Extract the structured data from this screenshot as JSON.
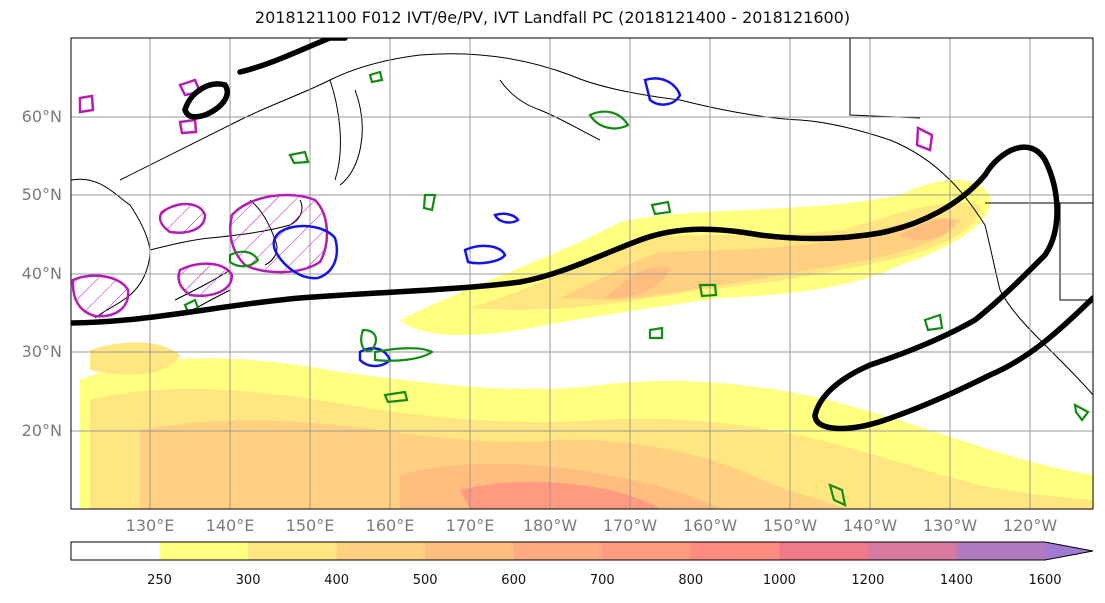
{
  "title": "2018121100 F012 IVT/θe/PV, IVT Landfall PC (2018121400 - 2018121600)",
  "lat_labels": [
    "60°N",
    "50°N",
    "40°N",
    "30°N",
    "20°N"
  ],
  "lon_labels": [
    "130°E",
    "140°E",
    "150°E",
    "160°E",
    "170°E",
    "180°W",
    "170°W",
    "160°W",
    "150°W",
    "140°W",
    "130°W",
    "120°W"
  ],
  "colorbar": {
    "levels": [
      "250",
      "300",
      "400",
      "500",
      "600",
      "700",
      "800",
      "1000",
      "1200",
      "1400",
      "1600"
    ],
    "colors": [
      "#ffffff",
      "#ffff80",
      "#ffe680",
      "#ffd080",
      "#ffbd80",
      "#ffaa80",
      "#ff9a80",
      "#ff8a80",
      "#f07a88",
      "#d87aa0",
      "#b07ac0",
      "#a07ad0"
    ]
  },
  "legend_colors": {
    "land_outline": "#000000",
    "landfall_pc": "#000000",
    "green_contour": "#148c14",
    "blue_contour": "#1414e6",
    "magenta_contour": "#b41eb4",
    "grid": "#9a9a9a"
  }
}
